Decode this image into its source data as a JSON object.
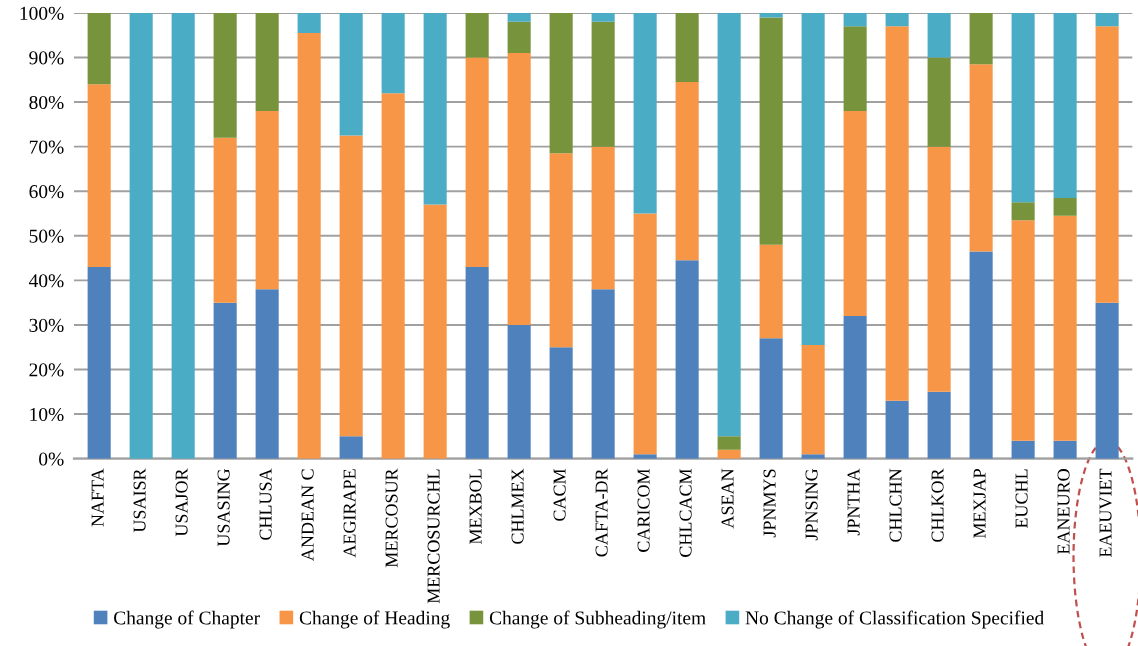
{
  "chart_data": {
    "type": "bar",
    "stacked": true,
    "categories": [
      "NAFTA",
      "USAISR",
      "USAJOR",
      "USASING",
      "CHLUSA",
      "ANDEAN C",
      "AEGIRAPE",
      "MERCOSUR",
      "MERCOSURCHL",
      "MEXBOL",
      "CHLMEX",
      "CACM",
      "CAFTA-DR",
      "CARICOM",
      "CHLCACM",
      "ASEAN",
      "JPNMYS",
      "JPNSING",
      "JPNTHA",
      "CHLCHN",
      "CHLKOR",
      "MEXJAP",
      "EUCHL",
      "EANEURO",
      "EAEUVIET"
    ],
    "series": [
      {
        "name": "Change of Chapter",
        "color": "#4f81bd",
        "values": [
          43,
          0,
          0,
          35,
          38,
          0,
          5,
          0,
          0,
          43,
          30,
          25,
          38,
          1,
          44.5,
          0,
          27,
          1,
          32,
          13,
          15,
          46.5,
          4,
          4,
          35
        ]
      },
      {
        "name": "Change of Heading",
        "color": "#f79646",
        "values": [
          41,
          0,
          0,
          37,
          40,
          95.5,
          67.5,
          82,
          57,
          47,
          61,
          43.5,
          32,
          54,
          40,
          2,
          21,
          24.5,
          46,
          84,
          55,
          42,
          49.5,
          50.5,
          62
        ]
      },
      {
        "name": "Change of Subheading/item",
        "color": "#77933c",
        "values": [
          16,
          0,
          0,
          28,
          22,
          0,
          0,
          0,
          0,
          10,
          7,
          31.5,
          28,
          0,
          15.5,
          3,
          51,
          0,
          19,
          0,
          20,
          11.5,
          4,
          4,
          0
        ]
      },
      {
        "name": "No Change of Classification Specified",
        "color": "#4bacc6",
        "values": [
          0,
          100,
          100,
          0,
          0,
          4.5,
          27.5,
          18,
          43,
          0,
          2,
          0,
          2,
          45,
          0,
          95,
          1,
          74.5,
          3,
          3,
          10,
          0,
          42.5,
          41.5,
          3
        ]
      }
    ],
    "ylim": [
      0,
      100
    ],
    "yticks": [
      {
        "value": 0,
        "label": "0%"
      },
      {
        "value": 10,
        "label": "10%"
      },
      {
        "value": 20,
        "label": "20%"
      },
      {
        "value": 30,
        "label": "30%"
      },
      {
        "value": 40,
        "label": "40%"
      },
      {
        "value": 50,
        "label": "50%"
      },
      {
        "value": 60,
        "label": "60%"
      },
      {
        "value": 70,
        "label": "70%"
      },
      {
        "value": 80,
        "label": "80%"
      },
      {
        "value": 90,
        "label": "90%"
      },
      {
        "value": 100,
        "label": "100%"
      }
    ],
    "grid": "y",
    "legend": "bottom"
  }
}
